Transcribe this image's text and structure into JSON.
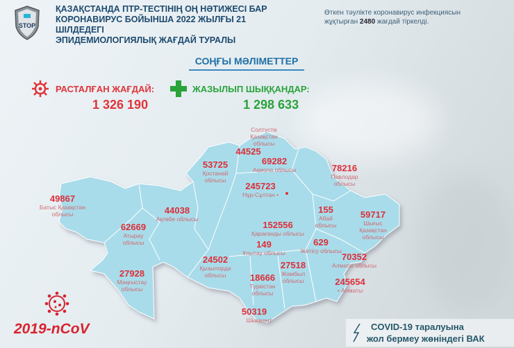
{
  "header": {
    "title_lines": [
      "ҚАЗАҚСТАНДА ПТР-ТЕСТІНІҢ ОҢ НӘТИЖЕСІ БАР",
      "КОРОНАВИРУС БОЙЫНША 2022 ЖЫЛҒЫ 21 ШІЛДЕДЕГІ",
      "ЭПИДЕМИОЛОГИЯЛЫҚ ЖАҒДАЙ ТУРАЛЫ"
    ],
    "logo_text": "STOP",
    "note_before": "Өткен тәулікте коронавирус инфекциясын жұқтырған ",
    "note_count": "2480",
    "note_after": " жағдай тіркелді."
  },
  "latest_title": "СОҢҒЫ МӘЛІМЕТТЕР",
  "confirmed": {
    "label": "РАСТАЛҒАН ЖАҒДАЙ:",
    "value": "1 326 190",
    "icon": "virus-icon",
    "color": "#e0343a"
  },
  "recovered": {
    "label": "ЖАЗЫЛЫП ШЫҚҚАНДАР:",
    "value": "1 298 633",
    "icon": "plus-icon",
    "color": "#2aa33a"
  },
  "regions": [
    {
      "value": "44525",
      "name": "Солтүстік\nҚазақстан\nоблысы"
    },
    {
      "value": "69282",
      "name": "Ақмола облысы"
    },
    {
      "value": "78216",
      "name": "Павлодар\nоблысы"
    },
    {
      "value": "53725",
      "name": "Қостанай\nоблысы"
    },
    {
      "value": "245723",
      "name": "Нұр-Сұлтан •"
    },
    {
      "value": "49867",
      "name": "Батыс Қазақстан\nоблысы"
    },
    {
      "value": "44038",
      "name": "Ақтөбе облысы"
    },
    {
      "value": "62669",
      "name": "Атырау\nоблысы"
    },
    {
      "value": "155",
      "name": "Абай\nоблысы"
    },
    {
      "value": "59717",
      "name": "Шығыс\nҚазақстан\nоблысы"
    },
    {
      "value": "152556",
      "name": "Қарағанды облысы"
    },
    {
      "value": "149",
      "name": "Ұлытау облысы"
    },
    {
      "value": "629",
      "name": "Жетісу облысы"
    },
    {
      "value": "70352",
      "name": "Алматы облысы"
    },
    {
      "value": "27928",
      "name": "Маңғыстау\nоблысы"
    },
    {
      "value": "24502",
      "name": "Қызылорда\nоблысы"
    },
    {
      "value": "27518",
      "name": "Жамбыл\nоблысы"
    },
    {
      "value": "18666",
      "name": "Түркістан\nоблысы"
    },
    {
      "value": "245654",
      "name": "• Алматы"
    },
    {
      "value": "50319",
      "name": "Шымкент"
    }
  ],
  "map_color": "#a9dcea",
  "footer": {
    "ncov": "2019-nCoV",
    "vak_line1": "COVID-19 таралуына",
    "vak_line2": "жол бермеу жөніндегі ВАК"
  }
}
